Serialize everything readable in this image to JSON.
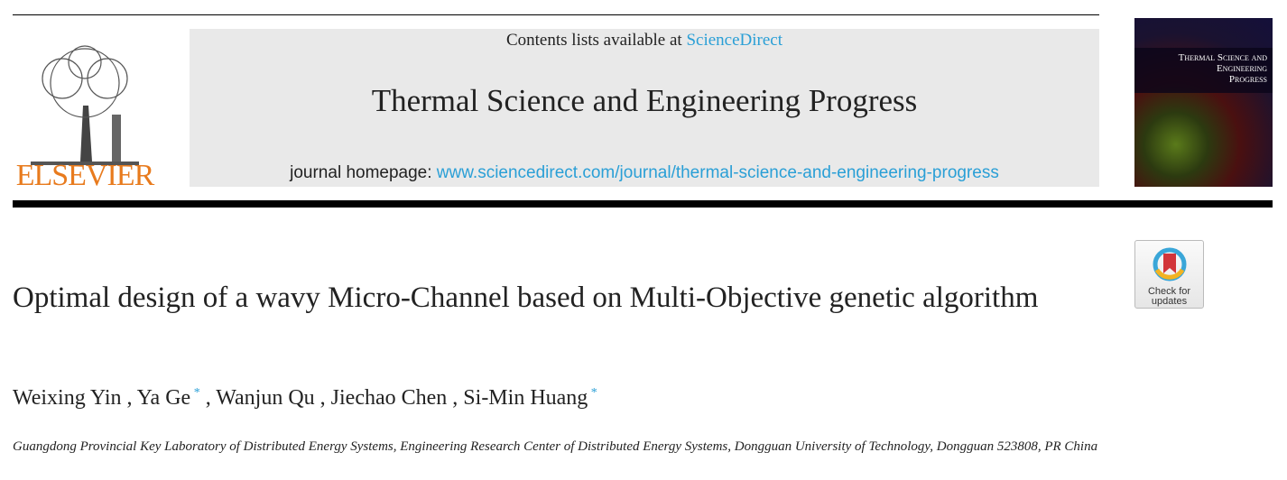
{
  "header": {
    "contents_prefix": "Contents lists available at ",
    "contents_link": "ScienceDirect",
    "journal_title": "Thermal Science and Engineering Progress",
    "homepage_prefix": "journal homepage: ",
    "homepage_url": "www.sciencedirect.com/journal/thermal-science-and-engineering-progress",
    "publisher": "ELSEVIER",
    "cover_title": "Thermal Science and Engineering Progress"
  },
  "badge": {
    "label": "Check for updates"
  },
  "article": {
    "title": "Optimal design of a wavy Micro-Channel based on Multi-Objective genetic algorithm",
    "authors": [
      {
        "name": "Weixing Yin",
        "corresponding": false
      },
      {
        "name": "Ya Ge",
        "corresponding": true
      },
      {
        "name": "Wanjun Qu",
        "corresponding": false
      },
      {
        "name": "Jiechao Chen",
        "corresponding": false
      },
      {
        "name": "Si-Min Huang",
        "corresponding": true
      }
    ],
    "corresponding_mark": "*",
    "affiliation": "Guangdong Provincial Key Laboratory of Distributed Energy Systems, Engineering Research Center of Distributed Energy Systems, Dongguan University of Technology, Dongguan 523808, PR China"
  },
  "colors": {
    "link": "#2a9fd6",
    "elsevier": "#e87b1e"
  }
}
